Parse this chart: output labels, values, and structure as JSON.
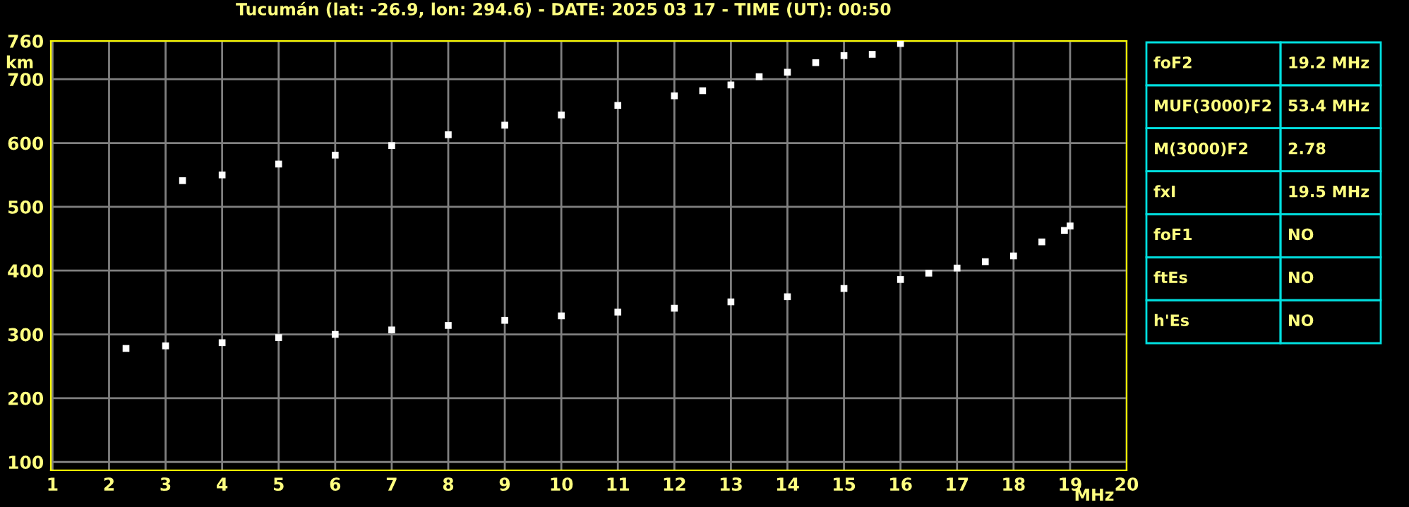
{
  "chart_data": {
    "type": "scatter",
    "title": "Tucumán (lat: -26.9, lon: 294.6) - DATE: 2025 03 17 - TIME (UT): 00:50",
    "xlabel": "MHz",
    "ylabel": "km",
    "series": [
      {
        "color": "#ffffff",
        "x": [
          2.3,
          3,
          4,
          5,
          6,
          7,
          8,
          9,
          10,
          11,
          12,
          13,
          14,
          15,
          16,
          16.5,
          17,
          17.5,
          18,
          18.5,
          18.9,
          19.0
        ],
        "values": [
          278,
          282,
          287,
          295,
          300,
          307,
          314,
          322,
          329,
          335,
          341,
          351,
          359,
          372,
          386,
          396,
          404,
          414,
          423,
          445,
          463,
          470
        ]
      },
      {
        "color": "#ffffff",
        "x": [
          3.3,
          4,
          5,
          6,
          7,
          8,
          9,
          10,
          11,
          12,
          12.5,
          13,
          13.5,
          14,
          14.5,
          15,
          15.5,
          16
        ],
        "values": [
          541,
          550,
          567,
          581,
          596,
          613,
          628,
          644,
          659,
          674,
          682,
          691,
          704,
          711,
          726,
          737,
          739,
          756
        ]
      }
    ],
    "xlim": [
      0.97,
      20
    ],
    "xticks": [
      1,
      2,
      3,
      4,
      5,
      6,
      7,
      8,
      9,
      10,
      11,
      12,
      13,
      14,
      15,
      16,
      17,
      18,
      19,
      20
    ],
    "ylim": [
      87,
      760
    ],
    "yticks": [
      100,
      200,
      300,
      400,
      500,
      600,
      700,
      760
    ],
    "grid": true,
    "marker": "square",
    "legend": false,
    "annotations": [
      "foF2",
      "19.2 MHz",
      "MUF(3000)F2",
      "53.4 MHz",
      "M(3000)F2",
      "2.78",
      "fxI",
      "19.5 MHz",
      "foF1",
      "NO",
      "ftEs",
      "NO",
      "h'Es",
      "NO"
    ]
  }
}
